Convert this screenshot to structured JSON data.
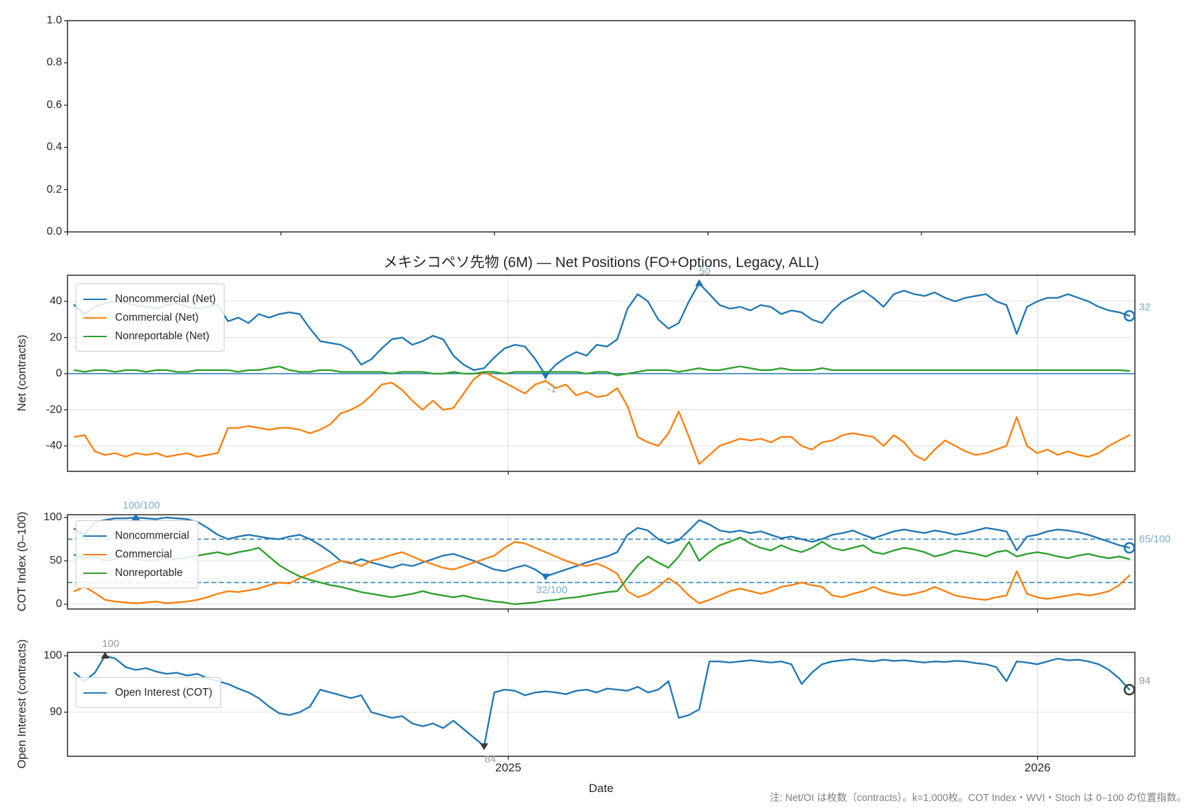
{
  "title": "メキシコペソ先物 (6M) — Net Positions (FO+Options, Legacy, ALL)",
  "xlabel": "Date",
  "note": "注: Net/OI は枚数（contracts）。k=1,000枚。COT Index・WVI・Stoch は 0–100 の位置指数。",
  "colors": {
    "noncommercial": "#1f77b4",
    "commercial": "#ff7f0e",
    "nonreportable": "#2ca02c",
    "open_interest": "#1f77b4",
    "annotation_blue": "#79add2",
    "annotation_gray": "#999999",
    "marker_dark": "#3a3a3a",
    "grid": "#dcdcdc",
    "spine": "#262626",
    "threshold_dashed": "#1f77b4"
  },
  "x_axis": {
    "year_ticks": [
      {
        "label": "2025",
        "index": 42.36
      },
      {
        "label": "2026",
        "index": 94.03
      }
    ],
    "n_points": 104
  },
  "chart_data": [
    {
      "type": "line",
      "name": "empty-axes",
      "ylabel": "",
      "yticks": [
        "1.0",
        "0.8",
        "0.6",
        "0.4",
        "0.2",
        "0.0"
      ],
      "series": []
    },
    {
      "type": "line",
      "name": "net-positions",
      "ylabel": "Net (contracts)",
      "ylim": [
        -54,
        54.5
      ],
      "yticks": [
        40,
        20,
        0,
        -20,
        -40
      ],
      "zero_line": 0,
      "legend": [
        "Noncommercial (Net)",
        "Commercial (Net)",
        "Nonreportable (Net)"
      ],
      "series": [
        {
          "name": "Noncommercial (Net)",
          "color_key": "noncommercial",
          "values": [
            38,
            33,
            37,
            39,
            40,
            39,
            38,
            37,
            36,
            38,
            39,
            37,
            36,
            37,
            38,
            29,
            31,
            28,
            33,
            31,
            33,
            34,
            33,
            25,
            18,
            17,
            16,
            13,
            5,
            8,
            14,
            19,
            20,
            16,
            18,
            21,
            19,
            10,
            5,
            2,
            3,
            9,
            14,
            16,
            15,
            8,
            -1,
            5,
            9,
            12,
            10,
            16,
            15,
            19,
            36,
            44,
            40,
            30,
            25,
            28,
            40,
            50,
            44,
            38,
            36,
            37,
            35,
            38,
            37,
            33,
            35,
            34,
            30,
            28,
            35,
            40,
            43,
            46,
            42,
            37,
            44,
            46,
            44,
            43,
            45,
            42,
            40,
            42,
            43,
            44,
            40,
            38,
            22,
            37,
            40,
            42,
            42,
            44,
            42,
            40,
            37,
            35,
            34,
            32
          ]
        },
        {
          "name": "Commercial (Net)",
          "color_key": "commercial",
          "values": [
            -35,
            -34,
            -43,
            -45,
            -44,
            -46,
            -44,
            -45,
            -44,
            -46,
            -45,
            -44,
            -46,
            -45,
            -44,
            -30,
            -30,
            -29,
            -30,
            -31,
            -30,
            -30,
            -31,
            -33,
            -31,
            -28,
            -22,
            -20,
            -17,
            -12,
            -6,
            -5,
            -9,
            -15,
            -20,
            -15,
            -20,
            -19,
            -11,
            -3,
            1,
            -2,
            -5,
            -8,
            -11,
            -6,
            -4,
            -8,
            -6,
            -12,
            -10,
            -13,
            -12,
            -8,
            -18,
            -35,
            -38,
            -40,
            -33,
            -21,
            -35,
            -50,
            -45,
            -40,
            -38,
            -36,
            -37,
            -36,
            -38,
            -35,
            -35,
            -40,
            -42,
            -38,
            -37,
            -34,
            -33,
            -34,
            -35,
            -40,
            -34,
            -38,
            -45,
            -48,
            -42,
            -37,
            -40,
            -43,
            -45,
            -44,
            -42,
            -40,
            -24,
            -40,
            -44,
            -42,
            -45,
            -43,
            -45,
            -46,
            -44,
            -40,
            -37,
            -34
          ]
        },
        {
          "name": "Nonreportable (Net)",
          "color_key": "nonreportable",
          "values": [
            2,
            1,
            2,
            2,
            1,
            2,
            2,
            1,
            2,
            2,
            1,
            1,
            2,
            2,
            2,
            2,
            1,
            2,
            2,
            3,
            4,
            2,
            1,
            1,
            2,
            2,
            1,
            1,
            1,
            1,
            1,
            0,
            1,
            1,
            1,
            0,
            0,
            1,
            0,
            0,
            1,
            1,
            0,
            1,
            1,
            1,
            1,
            1,
            1,
            1,
            0,
            1,
            1,
            -1,
            0,
            1,
            2,
            2,
            2,
            1,
            2,
            3,
            2,
            2,
            3,
            4,
            3,
            2,
            2,
            3,
            2,
            2,
            2,
            3,
            2,
            2,
            2,
            2,
            2,
            2,
            2,
            2,
            2,
            2,
            2,
            2,
            2,
            2,
            2,
            2,
            2,
            2,
            2,
            2,
            2,
            2,
            2,
            2,
            2,
            2,
            2,
            2,
            2,
            1.5
          ]
        }
      ],
      "annotations": [
        {
          "text": "50",
          "index": 61,
          "value": 50,
          "marker": "triangle-up",
          "placement": "above",
          "color": "blue"
        },
        {
          "text": "-1",
          "index": 46,
          "value": -1,
          "marker": "triangle-down",
          "placement": "below",
          "color": "blue"
        },
        {
          "text": "32",
          "index": 103,
          "value": 32,
          "marker": "circle",
          "placement": "right",
          "color": "blue"
        }
      ]
    },
    {
      "type": "line",
      "name": "cot-index",
      "ylabel": "COT Index (0–100)",
      "ylim": [
        -5,
        103
      ],
      "yticks": [
        100,
        50,
        0
      ],
      "dashed_thresholds": [
        75,
        25
      ],
      "legend": [
        "Noncommercial",
        "Commercial",
        "Nonreportable"
      ],
      "series": [
        {
          "name": "Noncommercial",
          "color_key": "noncommercial",
          "values": [
            87,
            80,
            95,
            97,
            99,
            99,
            100,
            99,
            98,
            100,
            99,
            98,
            95,
            88,
            80,
            75,
            78,
            80,
            78,
            76,
            75,
            78,
            80,
            75,
            68,
            60,
            50,
            47,
            52,
            48,
            45,
            42,
            46,
            44,
            48,
            52,
            56,
            58,
            54,
            50,
            45,
            40,
            38,
            42,
            45,
            40,
            32,
            36,
            40,
            44,
            48,
            52,
            55,
            60,
            80,
            88,
            85,
            75,
            70,
            74,
            85,
            97,
            92,
            85,
            83,
            85,
            82,
            84,
            80,
            76,
            78,
            75,
            72,
            75,
            80,
            82,
            85,
            80,
            76,
            80,
            84,
            86,
            84,
            82,
            85,
            83,
            80,
            82,
            85,
            88,
            86,
            84,
            62,
            78,
            80,
            84,
            86,
            85,
            83,
            80,
            76,
            72,
            68,
            65
          ]
        },
        {
          "name": "Commercial",
          "color_key": "commercial",
          "values": [
            15,
            20,
            13,
            5,
            3,
            2,
            1,
            2,
            3,
            1,
            2,
            3,
            5,
            8,
            12,
            15,
            14,
            16,
            18,
            22,
            25,
            24,
            30,
            35,
            40,
            45,
            50,
            48,
            44,
            50,
            53,
            57,
            60,
            55,
            50,
            46,
            42,
            40,
            44,
            48,
            52,
            56,
            65,
            72,
            70,
            65,
            60,
            55,
            50,
            46,
            44,
            47,
            42,
            35,
            15,
            8,
            12,
            20,
            30,
            22,
            10,
            1,
            5,
            10,
            15,
            18,
            15,
            12,
            15,
            20,
            22,
            25,
            22,
            20,
            10,
            8,
            12,
            15,
            20,
            15,
            12,
            10,
            12,
            15,
            20,
            15,
            10,
            8,
            6,
            5,
            8,
            10,
            38,
            12,
            8,
            6,
            8,
            10,
            12,
            10,
            12,
            15,
            22,
            33
          ]
        },
        {
          "name": "Nonreportable",
          "color_key": "nonreportable",
          "values": [
            57,
            53,
            55,
            50,
            52,
            54,
            52,
            50,
            51,
            53,
            52,
            54,
            56,
            58,
            60,
            57,
            60,
            62,
            65,
            55,
            45,
            38,
            32,
            28,
            25,
            22,
            20,
            17,
            14,
            12,
            10,
            8,
            10,
            12,
            15,
            12,
            10,
            8,
            10,
            7,
            5,
            3,
            2,
            0,
            1,
            2,
            4,
            5,
            7,
            8,
            10,
            12,
            14,
            15,
            30,
            45,
            55,
            48,
            42,
            55,
            72,
            50,
            60,
            68,
            72,
            77,
            70,
            65,
            62,
            68,
            63,
            60,
            65,
            72,
            65,
            62,
            65,
            68,
            60,
            58,
            62,
            65,
            63,
            60,
            55,
            58,
            62,
            60,
            58,
            55,
            60,
            62,
            55,
            58,
            60,
            58,
            55,
            53,
            56,
            58,
            55,
            53,
            55,
            52
          ]
        }
      ],
      "annotations": [
        {
          "text": "100/100",
          "index": 6,
          "value": 100,
          "marker": "triangle-up",
          "placement": "above",
          "color": "blue"
        },
        {
          "text": "32/100",
          "index": 46,
          "value": 32,
          "marker": "triangle-down",
          "placement": "below",
          "color": "blue"
        },
        {
          "text": "65/100",
          "index": 103,
          "value": 65,
          "marker": "circle",
          "placement": "right",
          "color": "blue"
        }
      ]
    },
    {
      "type": "line",
      "name": "open-interest",
      "ylabel": "Open Interest (contracts)",
      "ylim": [
        82,
        100.6
      ],
      "yticks": [
        100,
        90
      ],
      "legend": [
        "Open Interest (COT)"
      ],
      "series": [
        {
          "name": "Open Interest (COT)",
          "color_key": "open_interest",
          "values": [
            97,
            95.5,
            97,
            100,
            99.5,
            98,
            97.5,
            97.8,
            97.2,
            96.8,
            97,
            96.5,
            96.8,
            96,
            95.5,
            95,
            94.2,
            93.5,
            92.5,
            91,
            89.8,
            89.5,
            90,
            91,
            94,
            93.5,
            93,
            92.5,
            93,
            90,
            89.5,
            89,
            89.3,
            88,
            87.5,
            88,
            87.2,
            88.5,
            87,
            85.5,
            84,
            93.5,
            94,
            93.8,
            93,
            93.5,
            93.7,
            93.5,
            93.2,
            93.8,
            94,
            93.5,
            94.2,
            94,
            93.8,
            94.5,
            93.5,
            94,
            95.5,
            89,
            89.5,
            90.5,
            99,
            99,
            98.8,
            99,
            99.2,
            99,
            98.8,
            99,
            98.5,
            95,
            97,
            98.5,
            99,
            99.2,
            99.4,
            99.2,
            99,
            99.3,
            99.1,
            99.2,
            99,
            98.8,
            99,
            98.9,
            99.1,
            99,
            98.7,
            98.5,
            98,
            95.5,
            99,
            98.8,
            98.5,
            99,
            99.5,
            99.2,
            99.3,
            99,
            98.5,
            97.5,
            96,
            94
          ]
        }
      ],
      "annotations": [
        {
          "text": "100",
          "index": 3,
          "value": 100,
          "marker": "triangle-up",
          "placement": "above",
          "color": "gray"
        },
        {
          "text": "84",
          "index": 40,
          "value": 84,
          "marker": "triangle-down",
          "placement": "below",
          "color": "gray"
        },
        {
          "text": "94",
          "index": 103,
          "value": 94,
          "marker": "circle",
          "placement": "right",
          "color": "gray"
        }
      ]
    }
  ]
}
